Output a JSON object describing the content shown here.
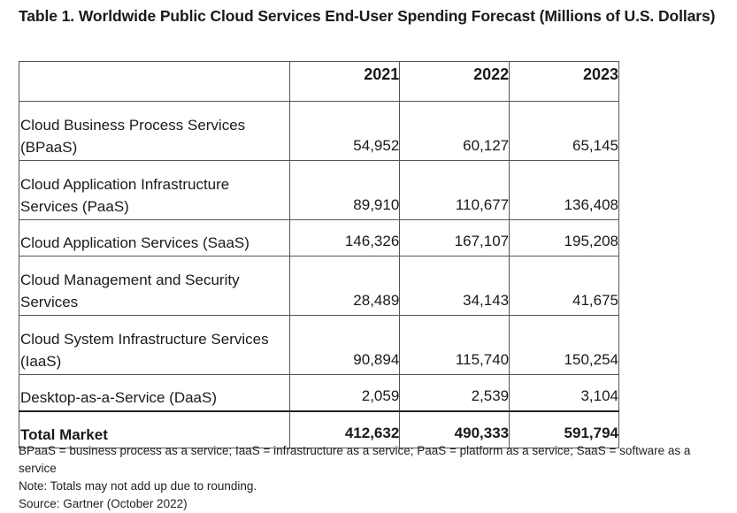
{
  "title": "Table 1. Worldwide Public Cloud Services End-User Spending Forecast (Millions of U.S. Dollars)",
  "columns": [
    "",
    "2021",
    "2022",
    "2023"
  ],
  "rows": [
    {
      "label": "Cloud Business Process Services (BPaaS)",
      "values": [
        "54,952",
        "60,127",
        "65,145"
      ]
    },
    {
      "label": "Cloud Application Infrastructure Services (PaaS)",
      "values": [
        "89,910",
        "110,677",
        "136,408"
      ]
    },
    {
      "label": "Cloud Application Services (SaaS)",
      "values": [
        "146,326",
        "167,107",
        "195,208"
      ]
    },
    {
      "label": "Cloud Management and Security Services",
      "values": [
        "28,489",
        "34,143",
        "41,675"
      ]
    },
    {
      "label": "Cloud System Infrastructure Services (IaaS)",
      "values": [
        "90,894",
        "115,740",
        "150,254"
      ]
    },
    {
      "label": "Desktop-as-a-Service (DaaS)",
      "values": [
        "2,059",
        "2,539",
        "3,104"
      ]
    }
  ],
  "total": {
    "label": "Total Market",
    "values": [
      "412,632",
      "490,333",
      "591,794"
    ]
  },
  "notes": {
    "abbreviations": "BPaaS = business process as a service; IaaS = infrastructure as a service; PaaS = platform as a service; SaaS = software as a service",
    "rounding": "Note: Totals may not add up due to rounding.",
    "source": "Source: Gartner (October 2022)"
  }
}
